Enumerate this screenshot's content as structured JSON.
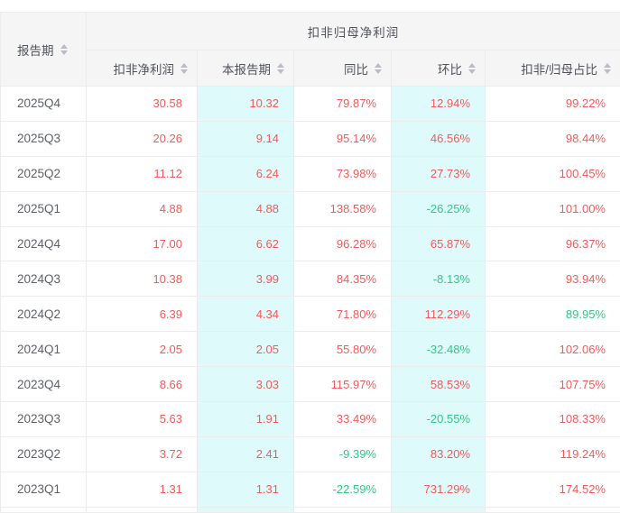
{
  "colors": {
    "red": "#f25a5a",
    "green": "#2fc985",
    "highlight": "#dffafb",
    "header_bg": "#f5f5f6",
    "border": "#ececec",
    "header_text": "#50545a",
    "period_text": "#5d6066",
    "sort_icon": "#b9bcc2"
  },
  "icons": {
    "sort": "caret-up-down"
  },
  "table": {
    "period_header": "报告期",
    "group_header": "扣非归母净利润",
    "columns": [
      "扣非净利润",
      "本报告期",
      "同比",
      "环比",
      "扣非/归母占比"
    ],
    "highlight_columns": [
      1,
      3
    ],
    "rows": [
      {
        "period": "2025Q4",
        "cells": [
          {
            "v": "30.58",
            "c": "red"
          },
          {
            "v": "10.32",
            "c": "red"
          },
          {
            "v": "79.87%",
            "c": "red"
          },
          {
            "v": "12.94%",
            "c": "red"
          },
          {
            "v": "99.22%",
            "c": "red"
          }
        ]
      },
      {
        "period": "2025Q3",
        "cells": [
          {
            "v": "20.26",
            "c": "red"
          },
          {
            "v": "9.14",
            "c": "red"
          },
          {
            "v": "95.14%",
            "c": "red"
          },
          {
            "v": "46.56%",
            "c": "red"
          },
          {
            "v": "98.44%",
            "c": "red"
          }
        ]
      },
      {
        "period": "2025Q2",
        "cells": [
          {
            "v": "11.12",
            "c": "red"
          },
          {
            "v": "6.24",
            "c": "red"
          },
          {
            "v": "73.98%",
            "c": "red"
          },
          {
            "v": "27.73%",
            "c": "red"
          },
          {
            "v": "100.45%",
            "c": "red"
          }
        ]
      },
      {
        "period": "2025Q1",
        "cells": [
          {
            "v": "4.88",
            "c": "red"
          },
          {
            "v": "4.88",
            "c": "red"
          },
          {
            "v": "138.58%",
            "c": "red"
          },
          {
            "v": "-26.25%",
            "c": "green"
          },
          {
            "v": "101.00%",
            "c": "red"
          }
        ]
      },
      {
        "period": "2024Q4",
        "cells": [
          {
            "v": "17.00",
            "c": "red"
          },
          {
            "v": "6.62",
            "c": "red"
          },
          {
            "v": "96.28%",
            "c": "red"
          },
          {
            "v": "65.87%",
            "c": "red"
          },
          {
            "v": "96.37%",
            "c": "red"
          }
        ]
      },
      {
        "period": "2024Q3",
        "cells": [
          {
            "v": "10.38",
            "c": "red"
          },
          {
            "v": "3.99",
            "c": "red"
          },
          {
            "v": "84.35%",
            "c": "red"
          },
          {
            "v": "-8.13%",
            "c": "green"
          },
          {
            "v": "93.94%",
            "c": "red"
          }
        ]
      },
      {
        "period": "2024Q2",
        "cells": [
          {
            "v": "6.39",
            "c": "red"
          },
          {
            "v": "4.34",
            "c": "red"
          },
          {
            "v": "71.80%",
            "c": "red"
          },
          {
            "v": "112.29%",
            "c": "red"
          },
          {
            "v": "89.95%",
            "c": "green"
          }
        ]
      },
      {
        "period": "2024Q1",
        "cells": [
          {
            "v": "2.05",
            "c": "red"
          },
          {
            "v": "2.05",
            "c": "red"
          },
          {
            "v": "55.80%",
            "c": "red"
          },
          {
            "v": "-32.48%",
            "c": "green"
          },
          {
            "v": "102.06%",
            "c": "red"
          }
        ]
      },
      {
        "period": "2023Q4",
        "cells": [
          {
            "v": "8.66",
            "c": "red"
          },
          {
            "v": "3.03",
            "c": "red"
          },
          {
            "v": "115.97%",
            "c": "red"
          },
          {
            "v": "58.53%",
            "c": "red"
          },
          {
            "v": "107.75%",
            "c": "red"
          }
        ]
      },
      {
        "period": "2023Q3",
        "cells": [
          {
            "v": "5.63",
            "c": "red"
          },
          {
            "v": "1.91",
            "c": "red"
          },
          {
            "v": "33.49%",
            "c": "red"
          },
          {
            "v": "-20.55%",
            "c": "green"
          },
          {
            "v": "108.33%",
            "c": "red"
          }
        ]
      },
      {
        "period": "2023Q2",
        "cells": [
          {
            "v": "3.72",
            "c": "red"
          },
          {
            "v": "2.41",
            "c": "red"
          },
          {
            "v": "-9.39%",
            "c": "green"
          },
          {
            "v": "83.20%",
            "c": "red"
          },
          {
            "v": "119.24%",
            "c": "red"
          }
        ]
      },
      {
        "period": "2023Q1",
        "cells": [
          {
            "v": "1.31",
            "c": "red"
          },
          {
            "v": "1.31",
            "c": "red"
          },
          {
            "v": "-22.59%",
            "c": "green"
          },
          {
            "v": "731.29%",
            "c": "red"
          },
          {
            "v": "174.52%",
            "c": "red"
          }
        ]
      }
    ]
  }
}
